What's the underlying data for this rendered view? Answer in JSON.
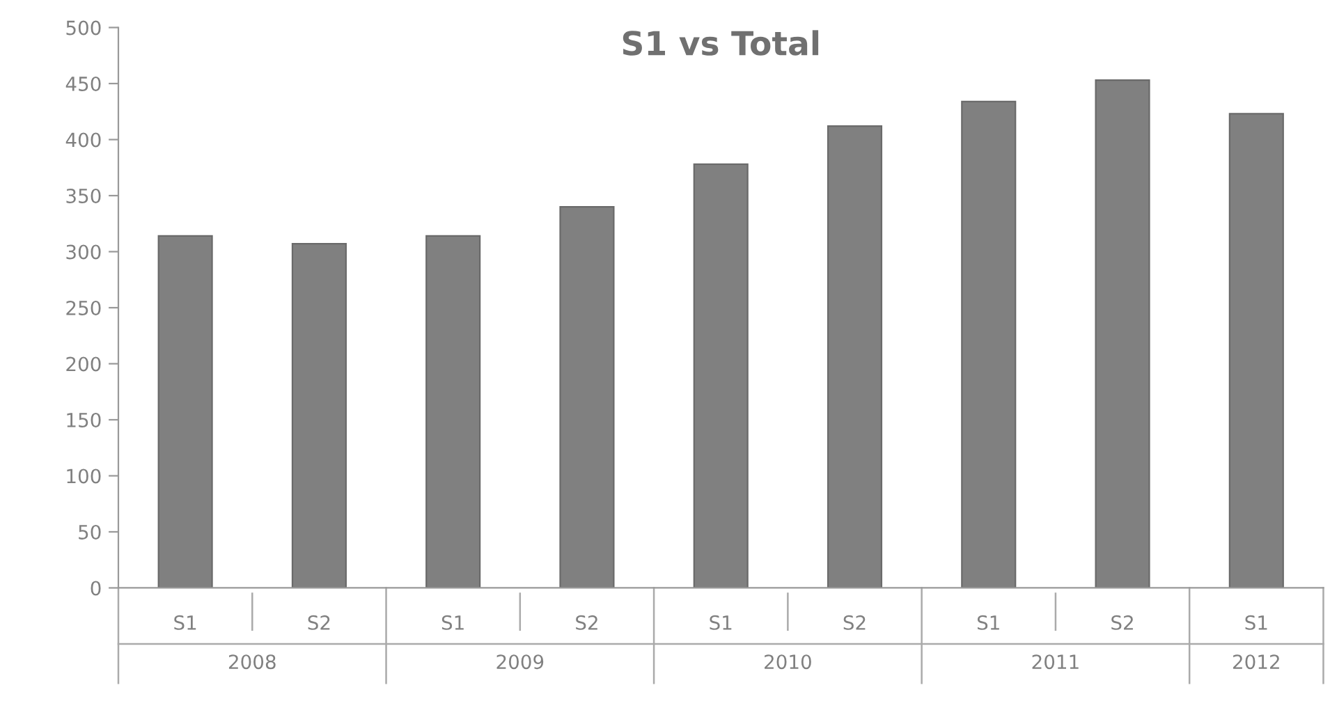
{
  "chart_data": {
    "type": "bar",
    "title": "S1 vs Total",
    "categories": [
      "S1",
      "S2",
      "S1",
      "S2",
      "S1",
      "S2",
      "S1",
      "S2",
      "S1"
    ],
    "values": [
      314,
      307,
      314,
      340,
      378,
      412,
      434,
      453,
      423
    ],
    "color": "#808080",
    "ylim": [
      0,
      500
    ],
    "yticks": [
      0,
      50,
      100,
      150,
      200,
      250,
      300,
      350,
      400,
      450,
      500
    ],
    "annotations": [
      "2008",
      "2009",
      "2010",
      "2011",
      "2012"
    ],
    "grid": false,
    "legend": false
  }
}
